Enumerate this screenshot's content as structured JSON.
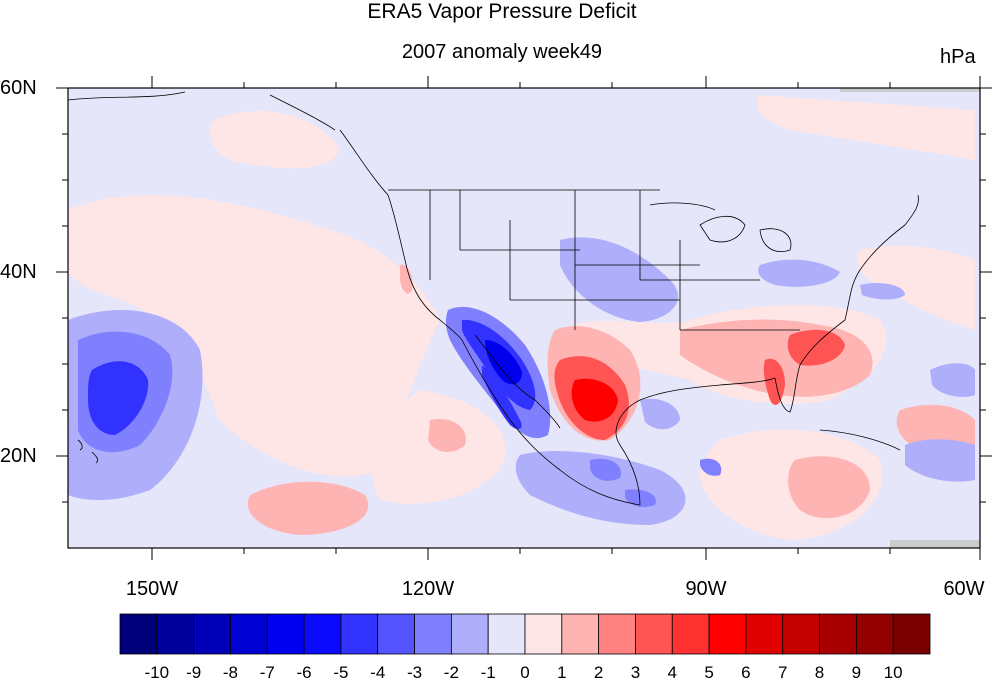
{
  "title": "ERA5 Vapor Pressure Deficit",
  "subtitle": "2007 anomaly week49",
  "units": "hPa",
  "map": {
    "lat_labels": [
      "60N",
      "40N",
      "20N"
    ],
    "lon_labels": [
      "150W",
      "120W",
      "90W",
      "60W"
    ],
    "lat_range": [
      10,
      60
    ],
    "lon_range": [
      -160,
      -60
    ],
    "projection": "cylindrical equidistant",
    "region": "North America / CONUS with eastern Pacific and Gulf of Mexico",
    "features": [
      {
        "name": "strong negative anomaly",
        "location": "Baja California / Gulf of California",
        "approx_value": -7
      },
      {
        "name": "negative anomaly",
        "location": "eastern Pacific near Hawaii",
        "approx_value": -5
      },
      {
        "name": "strong positive anomaly",
        "location": "northeastern Mexico / south Texas",
        "approx_value": 6
      },
      {
        "name": "positive anomaly",
        "location": "southeastern US / Georgia coast",
        "approx_value": 3
      },
      {
        "name": "positive anomaly",
        "location": "Florida peninsula",
        "approx_value": 3
      },
      {
        "name": "weak positive anomaly",
        "location": "Great Basin / Nevada",
        "approx_value": 1
      }
    ]
  },
  "colorbar": {
    "labels": [
      "-10",
      "-9",
      "-8",
      "-7",
      "-6",
      "-5",
      "-4",
      "-3",
      "-2",
      "-1",
      "0",
      "1",
      "2",
      "3",
      "4",
      "5",
      "6",
      "7",
      "8",
      "9",
      "10"
    ],
    "colors": [
      "#00007a",
      "#00009c",
      "#0000b8",
      "#0000d4",
      "#0000ee",
      "#0a0aff",
      "#3232ff",
      "#5555ff",
      "#8080ff",
      "#aeaefb",
      "#e6e6fa",
      "#ffe6e6",
      "#ffb4b4",
      "#ff8282",
      "#ff5454",
      "#ff3232",
      "#ff0000",
      "#e00000",
      "#c40000",
      "#a80000",
      "#920000",
      "#7a0000"
    ]
  }
}
